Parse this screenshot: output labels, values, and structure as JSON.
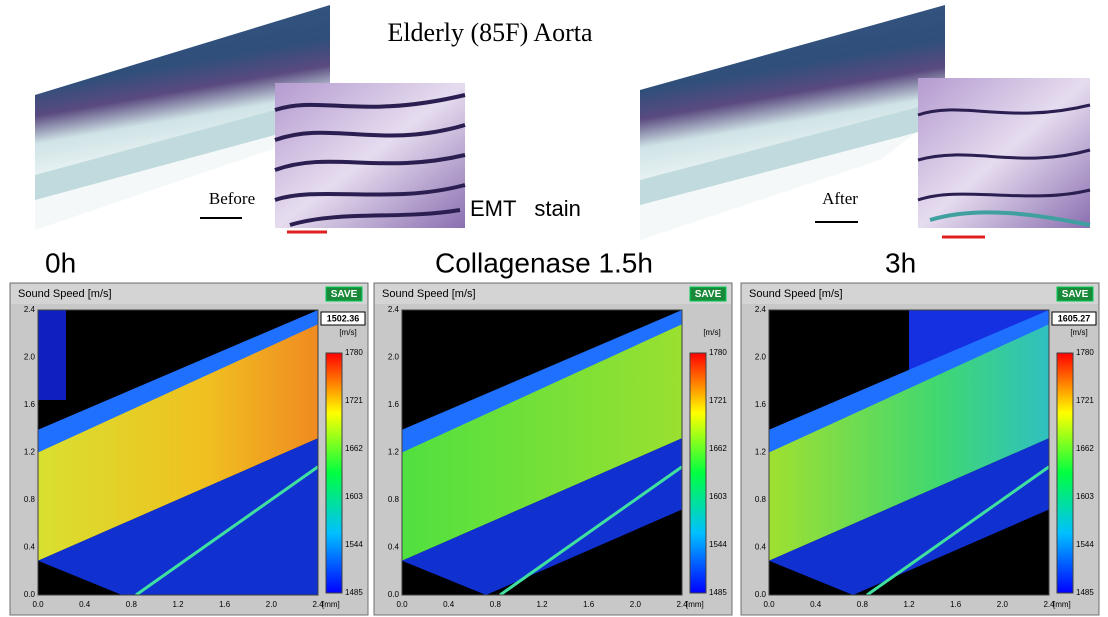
{
  "header": {
    "title": "Elderly (85F) Aorta",
    "stain": "EMT   stain",
    "before": "Before",
    "after": "After"
  },
  "time_labels": [
    "0h",
    "Collagenase 1.5h",
    "3h"
  ],
  "panels": [
    {
      "title": "Sound Speed [m/s]",
      "button": "SAVE",
      "readout": "1502.36",
      "unit": "[m/s]",
      "colorbar_ticks": [
        "1780",
        "1721",
        "1662",
        "1603",
        "1544",
        "1485"
      ],
      "y_ticks": [
        "2.4",
        "2.0",
        "1.6",
        "1.2",
        "0.8",
        "0.4",
        "0.0"
      ],
      "x_ticks": [
        "0.0",
        "0.4",
        "0.8",
        "1.2",
        "1.6",
        "2.0",
        "2.4"
      ],
      "x_unit": "[mm]"
    },
    {
      "title": "Sound Speed [m/s]",
      "button": "SAVE",
      "unit": "[m/s]",
      "colorbar_ticks": [
        "1780",
        "1721",
        "1662",
        "1603",
        "1544",
        "1485"
      ],
      "y_ticks": [
        "2.4",
        "2.0",
        "1.6",
        "1.2",
        "0.8",
        "0.4",
        "0.0"
      ],
      "x_ticks": [
        "0.0",
        "0.4",
        "0.8",
        "1.2",
        "1.6",
        "2.0",
        "2.4"
      ],
      "x_unit": "[mm]"
    },
    {
      "title": "Sound Speed [m/s]",
      "button": "SAVE",
      "readout": "1605.27",
      "unit": "[m/s]",
      "colorbar_ticks": [
        "1780",
        "1721",
        "1662",
        "1603",
        "1544",
        "1485"
      ],
      "y_ticks": [
        "2.4",
        "2.0",
        "1.6",
        "1.2",
        "0.8",
        "0.4",
        "0.0"
      ],
      "x_ticks": [
        "0.0",
        "0.4",
        "0.8",
        "1.2",
        "1.6",
        "2.0",
        "2.4"
      ],
      "x_unit": "[mm]"
    }
  ]
}
